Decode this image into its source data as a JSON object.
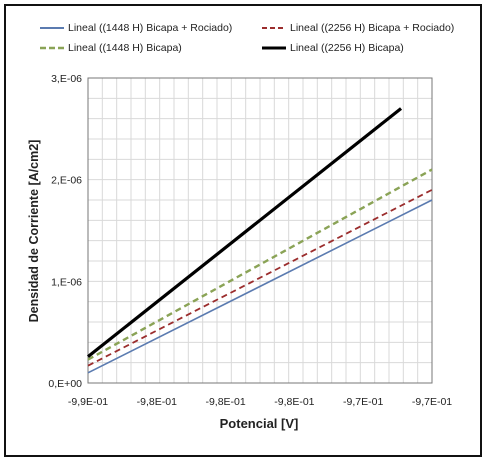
{
  "chart_data": {
    "type": "line",
    "title": "",
    "xlabel": "Potencial [V]",
    "ylabel": "Densidad de Corriente [A/cm2]",
    "x_tick_labels": [
      "-9,9E-01",
      "-9,8E-01",
      "-9,8E-01",
      "-9,8E-01",
      "-9,7E-01",
      "-9,7E-01"
    ],
    "y_tick_labels": [
      "0,E+00",
      "1,E-06",
      "2,E-06",
      "3,E-06"
    ],
    "x_ticks": [
      -0.99,
      -0.984,
      -0.978,
      -0.972,
      -0.966,
      -0.96
    ],
    "xlim": [
      -0.99,
      -0.96
    ],
    "ylim": [
      0,
      3e-06
    ],
    "grid": true,
    "legend_position": "top",
    "series": [
      {
        "name": "Lineal ((1448 H) Bicapa + Rociado)",
        "color": "#5b7bb0",
        "dash": "solid",
        "x": [
          -0.99,
          -0.96
        ],
        "y": [
          1e-07,
          1.8e-06
        ]
      },
      {
        "name": "Lineal ((2256 H) Bicapa + Rociado)",
        "color": "#9b2d2d",
        "dash": "dashed",
        "x": [
          -0.99,
          -0.96
        ],
        "y": [
          1.7e-07,
          1.9e-06
        ]
      },
      {
        "name": "Lineal ((1448 H) Bicapa)",
        "color": "#8aa356",
        "dash": "dashed",
        "x": [
          -0.99,
          -0.96
        ],
        "y": [
          2.3e-07,
          2.1e-06
        ]
      },
      {
        "name": "Lineal ((2256 H) Bicapa)",
        "color": "#000000",
        "dash": "solid",
        "x": [
          -0.99,
          -0.9627
        ],
        "y": [
          2.6e-07,
          2.7e-06
        ]
      }
    ]
  }
}
